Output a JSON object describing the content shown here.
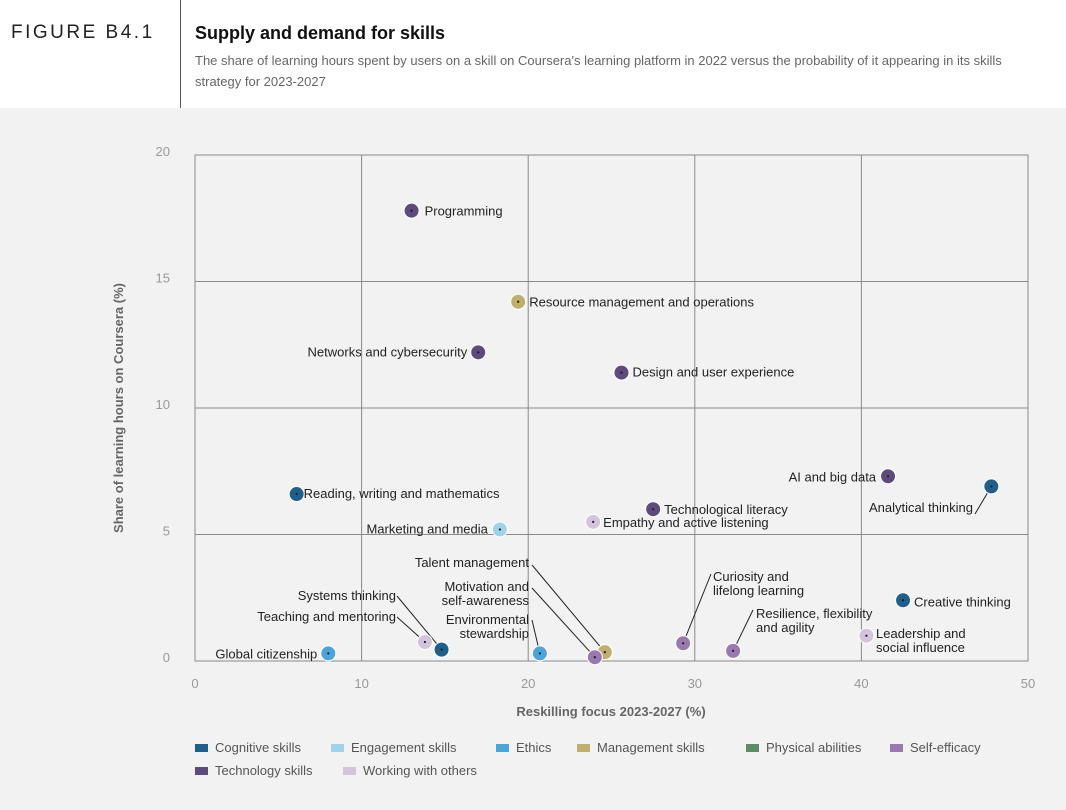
{
  "header": {
    "figure_label": "FIGURE B4.1",
    "title": "Supply and demand for skills",
    "subtitle": "The share of learning hours spent by users on a skill on Coursera's learning platform in 2022 versus the probability of it appearing in its skills strategy for 2023-2027"
  },
  "chart_data": {
    "type": "scatter",
    "title": "Supply and demand for skills",
    "xlabel": "Reskilling focus 2023-2027 (%)",
    "ylabel": "Share of learning hours on Coursera (%)",
    "xlim": [
      0,
      50
    ],
    "ylim": [
      0,
      20
    ],
    "xticks": [
      0,
      10,
      20,
      30,
      40,
      50
    ],
    "yticks": [
      0,
      5,
      10,
      15,
      20
    ],
    "grid": true,
    "legend_placement": "bottom",
    "categories": [
      {
        "name": "Cognitive skills",
        "color": "#1f5f8b"
      },
      {
        "name": "Engagement skills",
        "color": "#9fd3ea"
      },
      {
        "name": "Ethics",
        "color": "#4aa6d9"
      },
      {
        "name": "Management skills",
        "color": "#bfae6c"
      },
      {
        "name": "Physical abilities",
        "color": "#5e8b68"
      },
      {
        "name": "Self-efficacy",
        "color": "#9a78b0"
      },
      {
        "name": "Technology skills",
        "color": "#5e4a7c"
      },
      {
        "name": "Working with others",
        "color": "#d4c3dc"
      }
    ],
    "points": [
      {
        "label": "Programming",
        "category": "Technology skills",
        "x": 13.0,
        "y": 17.8
      },
      {
        "label": "Resource management and operations",
        "category": "Management skills",
        "x": 19.4,
        "y": 14.2
      },
      {
        "label": "Networks and cybersecurity",
        "category": "Technology skills",
        "x": 17.0,
        "y": 12.2
      },
      {
        "label": "Design and user experience",
        "category": "Technology skills",
        "x": 25.6,
        "y": 11.4
      },
      {
        "label": "AI and big data",
        "category": "Technology skills",
        "x": 41.6,
        "y": 7.3
      },
      {
        "label": "Analytical thinking",
        "category": "Cognitive skills",
        "x": 47.8,
        "y": 6.9
      },
      {
        "label": "Reading, writing and mathematics",
        "category": "Cognitive skills",
        "x": 6.1,
        "y": 6.6
      },
      {
        "label": "Technological literacy",
        "category": "Technology skills",
        "x": 27.5,
        "y": 6.0
      },
      {
        "label": "Empathy and active listening",
        "category": "Working with others",
        "x": 23.9,
        "y": 5.5
      },
      {
        "label": "Marketing and media",
        "category": "Engagement skills",
        "x": 18.3,
        "y": 5.2
      },
      {
        "label": "Creative thinking",
        "category": "Cognitive skills",
        "x": 42.5,
        "y": 2.4
      },
      {
        "label": "Leadership and social influence",
        "category": "Working with others",
        "x": 40.3,
        "y": 1.0
      },
      {
        "label": "Curiosity and lifelong learning",
        "category": "Self-efficacy",
        "x": 29.3,
        "y": 0.7
      },
      {
        "label": "Resilience, flexibility and agility",
        "category": "Self-efficacy",
        "x": 32.3,
        "y": 0.4
      },
      {
        "label": "Talent management",
        "category": "Management skills",
        "x": 24.6,
        "y": 0.35
      },
      {
        "label": "Motivation and self-awareness",
        "category": "Self-efficacy",
        "x": 24.0,
        "y": 0.15
      },
      {
        "label": "Environmental stewardship",
        "category": "Ethics",
        "x": 20.7,
        "y": 0.3
      },
      {
        "label": "Systems thinking",
        "category": "Cognitive skills",
        "x": 14.8,
        "y": 0.45
      },
      {
        "label": "Teaching and mentoring",
        "category": "Working with others",
        "x": 13.8,
        "y": 0.75
      },
      {
        "label": "Global citizenship",
        "category": "Ethics",
        "x": 8.0,
        "y": 0.3
      }
    ]
  }
}
